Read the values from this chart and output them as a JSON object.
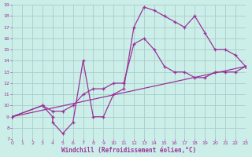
{
  "xlabel": "Windchill (Refroidissement éolien,°C)",
  "bg_color": "#cceee8",
  "line_color": "#993399",
  "grid_color": "#aacccc",
  "xlim": [
    0,
    23
  ],
  "ylim": [
    7,
    19
  ],
  "xticks": [
    0,
    1,
    2,
    3,
    4,
    5,
    6,
    7,
    8,
    9,
    10,
    11,
    12,
    13,
    14,
    15,
    16,
    17,
    18,
    19,
    20,
    21,
    22,
    23
  ],
  "yticks": [
    7,
    8,
    9,
    10,
    11,
    12,
    13,
    14,
    15,
    16,
    17,
    18,
    19
  ],
  "curve1_x": [
    0,
    3,
    4,
    4,
    5,
    6,
    7,
    8,
    9,
    10,
    11,
    12,
    13,
    14,
    15,
    16,
    17,
    18,
    19,
    20,
    21,
    22,
    23
  ],
  "curve1_y": [
    9,
    10,
    9,
    8.5,
    7.5,
    8.5,
    14,
    9,
    9,
    11,
    11.5,
    17,
    18.8,
    18.5,
    18,
    17.5,
    17,
    18,
    16.5,
    15,
    15,
    14.5,
    13.5
  ],
  "curve2_x": [
    0,
    3,
    4,
    5,
    6,
    7,
    8,
    9,
    10,
    11,
    12,
    13,
    14,
    15,
    16,
    17,
    18,
    19,
    20,
    21,
    22,
    23
  ],
  "curve2_y": [
    9,
    10,
    9.5,
    9.5,
    10,
    11,
    11.5,
    11.5,
    12,
    12,
    15.5,
    16,
    15,
    13.5,
    13,
    13,
    12.5,
    12.5,
    13,
    13,
    13,
    13.5
  ],
  "curve3_x": [
    0,
    23
  ],
  "curve3_y": [
    9,
    13.5
  ]
}
